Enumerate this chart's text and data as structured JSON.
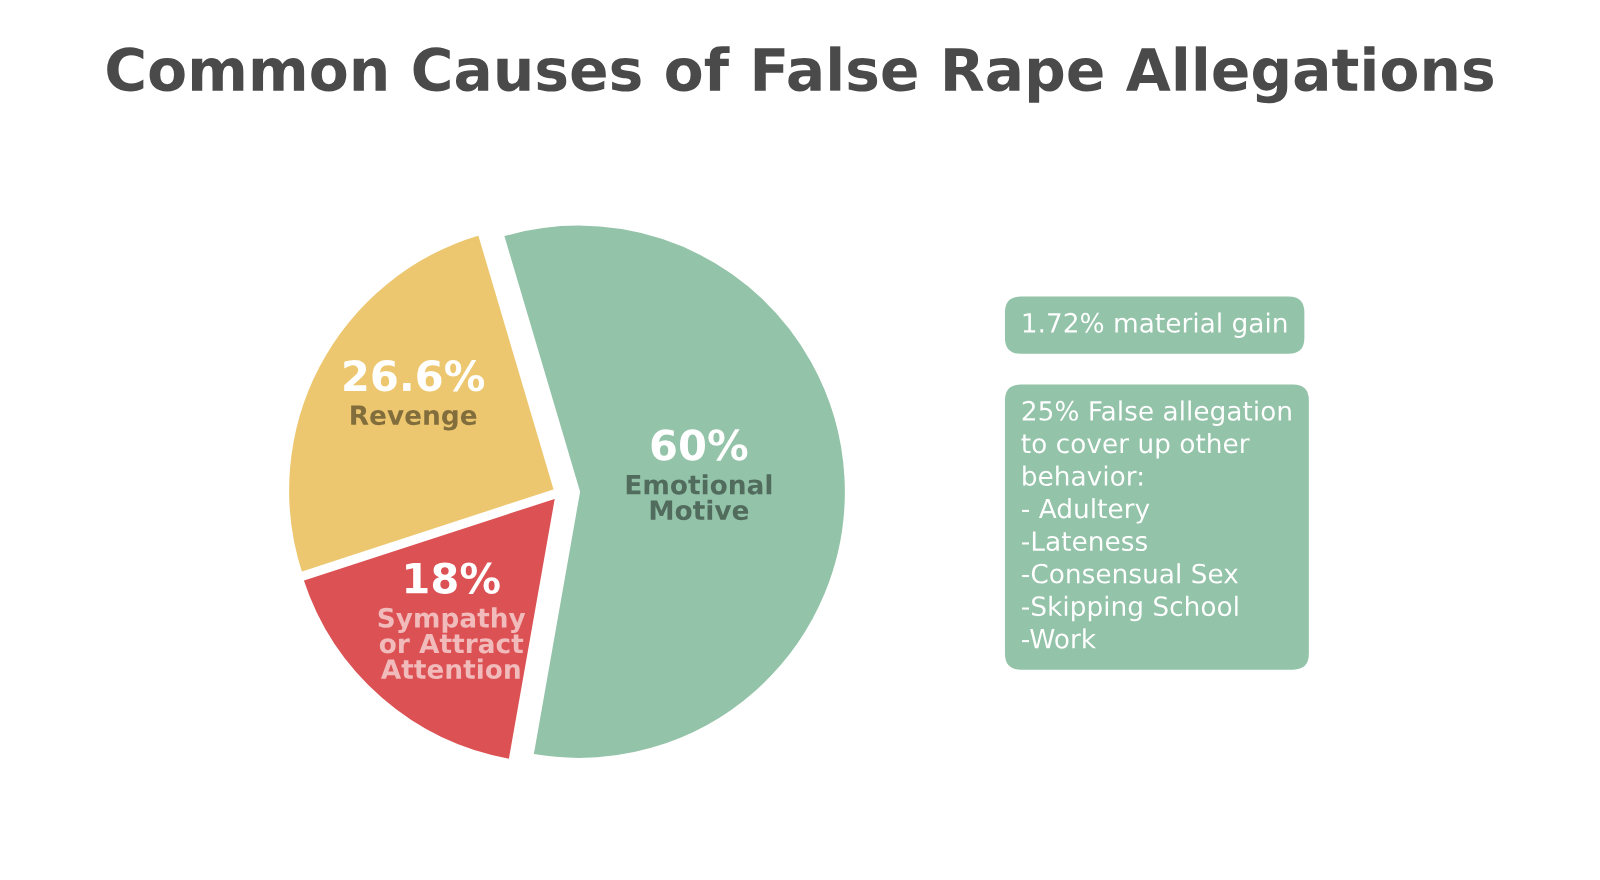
{
  "chart_data": {
    "type": "pie",
    "title": "Common Causes of False Rape Allegations",
    "categories": [
      "Emotional\nMotive",
      "Revenge",
      "Sympathy\nor Attract\nAttention"
    ],
    "values": [
      60,
      26.6,
      18
    ],
    "value_labels": [
      "60%",
      "26.6%",
      "18%"
    ],
    "colors": [
      "#93c3a8",
      "#edc76f",
      "#dc5254"
    ],
    "annotations": [
      "1.72% material gain",
      "25% False allegation\nto cover up other\nbehavior:\n- Adultery\n-Lateness\n-Consensual Sex\n-Skipping School\n-Work"
    ],
    "legend": false
  }
}
